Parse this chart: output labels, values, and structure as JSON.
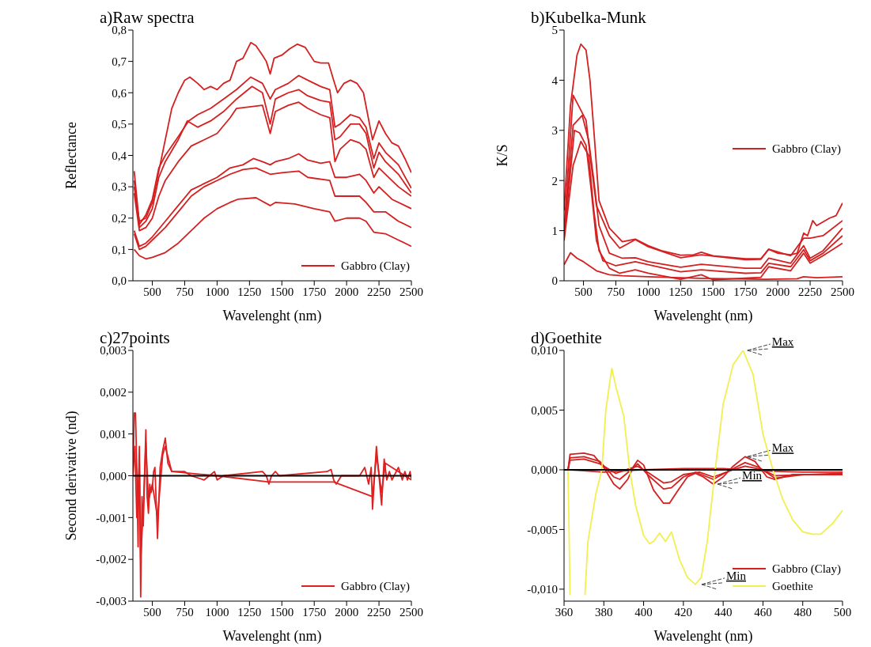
{
  "chart_data": [
    {
      "type": "line",
      "title": "a)Raw spectra",
      "xlabel": "Wavelenght (nm)",
      "ylabel": "Reflectance",
      "xlim": [
        350,
        2500
      ],
      "xticks": [
        500,
        750,
        1000,
        1250,
        1500,
        1750,
        2000,
        2250,
        2500
      ],
      "ylim": [
        0,
        0.8
      ],
      "yticks": [
        {
          "value": 0,
          "label": "0,0"
        },
        {
          "value": 0.1,
          "label": "0,1"
        },
        {
          "value": 0.2,
          "label": "0,2"
        },
        {
          "value": 0.3,
          "label": "0,3"
        },
        {
          "value": 0.4,
          "label": "0,4"
        },
        {
          "value": 0.5,
          "label": "0,5"
        },
        {
          "value": 0.6,
          "label": "0,6"
        },
        {
          "value": 0.7,
          "label": "0,7"
        },
        {
          "value": 0.8,
          "label": "0,8"
        }
      ],
      "legend": "bottom right",
      "grid": false,
      "series": [
        {
          "name": "Gabbro (Clay)",
          "color": "#d42020",
          "x": [
            360,
            400,
            450,
            500,
            550,
            600,
            650,
            700,
            750,
            790,
            850,
            900,
            950,
            1000,
            1050,
            1100,
            1150,
            1200,
            1260,
            1300,
            1350,
            1380,
            1410,
            1440,
            1500,
            1560,
            1620,
            1680,
            1750,
            1800,
            1860,
            1900,
            1930,
            1980,
            2030,
            2080,
            2130,
            2200,
            2250,
            2300,
            2350,
            2400,
            2450,
            2500
          ],
          "values": [
            0.3,
            0.19,
            0.2,
            0.25,
            0.35,
            0.45,
            0.55,
            0.6,
            0.64,
            0.65,
            0.63,
            0.61,
            0.62,
            0.61,
            0.63,
            0.64,
            0.7,
            0.71,
            0.76,
            0.75,
            0.72,
            0.7,
            0.66,
            0.71,
            0.72,
            0.74,
            0.755,
            0.745,
            0.7,
            0.695,
            0.695,
            0.64,
            0.6,
            0.63,
            0.64,
            0.63,
            0.6,
            0.45,
            0.51,
            0.47,
            0.44,
            0.43,
            0.39,
            0.345
          ]
        },
        {
          "color": "#d42020",
          "x": [
            360,
            400,
            450,
            500,
            550,
            600,
            700,
            780,
            850,
            950,
            1050,
            1150,
            1260,
            1350,
            1410,
            1450,
            1550,
            1630,
            1700,
            1800,
            1870,
            1910,
            1950,
            2030,
            2100,
            2150,
            2210,
            2250,
            2300,
            2400,
            2500
          ],
          "values": [
            0.35,
            0.18,
            0.21,
            0.26,
            0.36,
            0.4,
            0.46,
            0.51,
            0.53,
            0.55,
            0.58,
            0.61,
            0.65,
            0.63,
            0.58,
            0.61,
            0.63,
            0.655,
            0.64,
            0.62,
            0.61,
            0.49,
            0.5,
            0.53,
            0.52,
            0.49,
            0.39,
            0.44,
            0.41,
            0.37,
            0.295
          ]
        },
        {
          "color": "#d42020",
          "x": [
            360,
            400,
            450,
            500,
            550,
            600,
            700,
            770,
            850,
            950,
            1050,
            1150,
            1270,
            1350,
            1410,
            1450,
            1550,
            1630,
            1700,
            1800,
            1870,
            1910,
            1950,
            2030,
            2100,
            2150,
            2210,
            2250,
            2300,
            2400,
            2500
          ],
          "values": [
            0.32,
            0.17,
            0.19,
            0.23,
            0.33,
            0.38,
            0.45,
            0.51,
            0.49,
            0.51,
            0.54,
            0.58,
            0.62,
            0.6,
            0.5,
            0.58,
            0.6,
            0.61,
            0.59,
            0.575,
            0.57,
            0.45,
            0.46,
            0.5,
            0.5,
            0.47,
            0.36,
            0.41,
            0.38,
            0.34,
            0.28
          ]
        },
        {
          "color": "#d42020",
          "x": [
            360,
            400,
            450,
            500,
            550,
            600,
            700,
            800,
            900,
            1000,
            1100,
            1150,
            1250,
            1350,
            1410,
            1450,
            1550,
            1630,
            1700,
            1800,
            1870,
            1910,
            1950,
            2030,
            2100,
            2150,
            2210,
            2250,
            2300,
            2400,
            2500
          ],
          "values": [
            0.28,
            0.16,
            0.17,
            0.2,
            0.27,
            0.32,
            0.38,
            0.43,
            0.45,
            0.47,
            0.52,
            0.55,
            0.555,
            0.56,
            0.47,
            0.54,
            0.56,
            0.57,
            0.55,
            0.53,
            0.52,
            0.38,
            0.42,
            0.45,
            0.44,
            0.42,
            0.33,
            0.36,
            0.34,
            0.3,
            0.27
          ]
        },
        {
          "color": "#d42020",
          "x": [
            360,
            400,
            450,
            500,
            600,
            700,
            800,
            900,
            1000,
            1100,
            1200,
            1280,
            1350,
            1410,
            1450,
            1550,
            1630,
            1700,
            1800,
            1870,
            1910,
            2000,
            2100,
            2150,
            2210,
            2250,
            2350,
            2500
          ],
          "values": [
            0.16,
            0.11,
            0.12,
            0.14,
            0.19,
            0.24,
            0.29,
            0.31,
            0.33,
            0.36,
            0.37,
            0.39,
            0.38,
            0.37,
            0.38,
            0.39,
            0.405,
            0.385,
            0.375,
            0.38,
            0.33,
            0.33,
            0.34,
            0.32,
            0.28,
            0.3,
            0.26,
            0.23
          ]
        },
        {
          "color": "#d42020",
          "x": [
            360,
            400,
            450,
            500,
            600,
            700,
            800,
            900,
            1000,
            1100,
            1200,
            1300,
            1410,
            1500,
            1630,
            1700,
            1870,
            1910,
            2000,
            2100,
            2150,
            2210,
            2300,
            2400,
            2500
          ],
          "values": [
            0.15,
            0.1,
            0.11,
            0.13,
            0.17,
            0.22,
            0.27,
            0.3,
            0.32,
            0.34,
            0.355,
            0.36,
            0.34,
            0.345,
            0.35,
            0.33,
            0.32,
            0.27,
            0.27,
            0.27,
            0.25,
            0.22,
            0.22,
            0.19,
            0.17
          ]
        },
        {
          "color": "#d42020",
          "x": [
            360,
            400,
            450,
            500,
            600,
            700,
            800,
            900,
            1000,
            1100,
            1160,
            1300,
            1410,
            1450,
            1600,
            1750,
            1870,
            1910,
            2000,
            2100,
            2150,
            2210,
            2300,
            2400,
            2500
          ],
          "values": [
            0.1,
            0.08,
            0.07,
            0.075,
            0.09,
            0.12,
            0.16,
            0.2,
            0.23,
            0.25,
            0.26,
            0.265,
            0.24,
            0.25,
            0.245,
            0.23,
            0.22,
            0.19,
            0.2,
            0.2,
            0.19,
            0.155,
            0.15,
            0.13,
            0.11
          ]
        }
      ]
    },
    {
      "type": "line",
      "title": "b)Kubelka-Munk",
      "xlabel": "Wavelenght (nm)",
      "ylabel": "K/S",
      "xlim": [
        350,
        2500
      ],
      "xticks": [
        500,
        750,
        1000,
        1250,
        1500,
        1750,
        2000,
        2250,
        2500
      ],
      "ylim": [
        0,
        5
      ],
      "yticks": [
        0,
        1,
        2,
        3,
        4,
        5
      ],
      "legend": "right",
      "grid": false,
      "series": [
        {
          "name": "Gabbro (Clay)",
          "color": "#d42020",
          "x": [
            350,
            400,
            450,
            480,
            520,
            550,
            580,
            620,
            700,
            800,
            900,
            1000,
            1100,
            1250,
            1350,
            1410,
            1500,
            1750,
            1870,
            1930,
            2000,
            2100,
            2150,
            2200,
            2230,
            2270,
            2300,
            2400,
            2450,
            2500
          ],
          "values": [
            1.4,
            3.5,
            4.5,
            4.72,
            4.6,
            4.0,
            3.0,
            1.6,
            1.05,
            0.78,
            0.83,
            0.7,
            0.6,
            0.51,
            0.52,
            0.57,
            0.5,
            0.44,
            0.44,
            0.63,
            0.55,
            0.52,
            0.55,
            0.95,
            0.9,
            1.2,
            1.1,
            1.25,
            1.3,
            1.55
          ]
        },
        {
          "color": "#d42020",
          "x": [
            350,
            420,
            480,
            520,
            560,
            600,
            700,
            780,
            900,
            1000,
            1250,
            1410,
            1750,
            1870,
            1930,
            2100,
            2200,
            2250,
            2350,
            2500
          ],
          "values": [
            1.0,
            3.7,
            3.4,
            3.2,
            2.3,
            1.5,
            0.9,
            0.65,
            0.82,
            0.68,
            0.46,
            0.52,
            0.42,
            0.43,
            0.63,
            0.5,
            0.85,
            0.85,
            0.9,
            1.2
          ]
        },
        {
          "color": "#d42020",
          "x": [
            350,
            420,
            490,
            540,
            580,
            620,
            700,
            800,
            900,
            1000,
            1250,
            1410,
            1750,
            1870,
            1930,
            2100,
            2200,
            2250,
            2350,
            2500
          ],
          "values": [
            0.9,
            3.1,
            3.3,
            2.8,
            2.0,
            1.1,
            0.55,
            0.45,
            0.46,
            0.38,
            0.27,
            0.33,
            0.25,
            0.25,
            0.45,
            0.35,
            0.7,
            0.45,
            0.6,
            1.05
          ]
        },
        {
          "color": "#d42020",
          "x": [
            350,
            430,
            470,
            520,
            560,
            600,
            650,
            750,
            900,
            1000,
            1250,
            1410,
            1750,
            1870,
            1930,
            2100,
            2200,
            2250,
            2350,
            2500
          ],
          "values": [
            0.85,
            3.0,
            2.95,
            2.7,
            1.8,
            0.8,
            0.4,
            0.3,
            0.38,
            0.32,
            0.18,
            0.22,
            0.15,
            0.16,
            0.35,
            0.28,
            0.62,
            0.4,
            0.55,
            0.9
          ]
        },
        {
          "color": "#d42020",
          "x": [
            350,
            420,
            480,
            540,
            580,
            620,
            700,
            780,
            900,
            1000,
            1250,
            1410,
            1500,
            1870,
            1930,
            2100,
            2200,
            2250,
            2350,
            2500
          ],
          "values": [
            0.8,
            2.3,
            2.78,
            2.5,
            1.4,
            0.6,
            0.25,
            0.15,
            0.22,
            0.15,
            0.03,
            0.12,
            0.02,
            0.07,
            0.28,
            0.2,
            0.55,
            0.35,
            0.5,
            0.75
          ]
        },
        {
          "color": "#d42020",
          "x": [
            350,
            400,
            450,
            500,
            600,
            700,
            800,
            1000,
            1400,
            1900,
            2150,
            2200,
            2300,
            2500
          ],
          "values": [
            0.32,
            0.56,
            0.45,
            0.38,
            0.2,
            0.12,
            0.1,
            0.08,
            0.05,
            0.03,
            0.04,
            0.08,
            0.06,
            0.08
          ]
        }
      ]
    },
    {
      "type": "line",
      "title": "c)27points",
      "xlabel": "Wavelenght (nm)",
      "ylabel": "Second derivative (nd)",
      "xlim": [
        350,
        2500
      ],
      "xticks": [
        500,
        750,
        1000,
        1250,
        1500,
        1750,
        2000,
        2250,
        2500
      ],
      "ylim": [
        -0.003,
        0.003
      ],
      "yticks": [
        {
          "value": -0.003,
          "label": "-0,003"
        },
        {
          "value": -0.002,
          "label": "-0,002"
        },
        {
          "value": -0.001,
          "label": "-0,001"
        },
        {
          "value": 0,
          "label": "0,000"
        },
        {
          "value": 0.001,
          "label": "0,001"
        },
        {
          "value": 0.002,
          "label": "0,002"
        },
        {
          "value": 0.003,
          "label": "0,003"
        }
      ],
      "legend": "bottom right",
      "grid": false,
      "ref_lines": [
        {
          "axis": "y",
          "value": 0,
          "color": "#000000"
        }
      ],
      "series": [
        {
          "name": "Gabbro (Clay)",
          "color": "#e02020",
          "x": [
            350,
            360,
            370,
            380,
            390,
            395,
            400,
            410,
            420,
            430,
            440,
            450,
            460,
            470,
            480,
            490,
            500,
            510,
            520,
            540,
            560,
            580,
            600,
            620,
            650,
            700,
            750,
            800,
            900,
            980,
            1000,
            1050,
            1350,
            1380,
            1400,
            1420,
            1450,
            1480,
            1850,
            1880,
            1900,
            1920,
            1960,
            2100,
            2140,
            2170,
            2190,
            2200,
            2230,
            2250,
            2270,
            2290,
            2310,
            2330,
            2350,
            2400,
            2430,
            2450,
            2470,
            2490,
            2500
          ],
          "values": [
            0,
            0.0015,
            0.0015,
            0.0002,
            -0.0017,
            0,
            0.0007,
            -0.0029,
            -0.0005,
            -0.0012,
            0,
            0.0011,
            -0.0005,
            -0.0009,
            -0.0002,
            -0.0004,
            -0.0003,
            0.0001,
            0.0002,
            -0.0015,
            0.0002,
            0.0006,
            0.0009,
            0.0003,
            0.0001,
            0.0001,
            0.0001,
            0,
            -0.0001,
            0.0001,
            -0.0001,
            0,
            0.0001,
            0,
            -0.0002,
            0,
            0.0001,
            0,
            0.0001,
            0.00015,
            -0.0001,
            -0.0002,
            0,
            0,
            0.0002,
            -0.0002,
            0.0002,
            -0.0008,
            0.0007,
            0,
            -0.0007,
            0.0004,
            -0.0001,
            0.0001,
            -0.0001,
            0.0002,
            -0.0001,
            0.0001,
            -0.0001,
            0.0001,
            -0.0001
          ]
        },
        {
          "color": "#e02020",
          "x": [
            350,
            365,
            380,
            400,
            410,
            430,
            450,
            470,
            500,
            540,
            580,
            600,
            650,
            1000,
            1400,
            1900,
            2200,
            2230,
            2270,
            2300,
            2400,
            2500
          ],
          "values": [
            0,
            0.0007,
            -0.001,
            0.0003,
            -0.002,
            -0.0008,
            0.0008,
            -0.0006,
            -0.0002,
            -0.001,
            0.0005,
            0.0007,
            0.0001,
            0,
            -0.00015,
            -0.00015,
            -0.0005,
            0.0005,
            -0.0004,
            0.0003,
            0.0001,
            -0.0001
          ]
        }
      ]
    },
    {
      "type": "line",
      "title": "d)Goethite",
      "xlabel": "Wavelenght (nm)",
      "xlim": [
        360,
        500
      ],
      "xticks": [
        360,
        380,
        400,
        420,
        440,
        460,
        480,
        500
      ],
      "ylim": [
        -0.011,
        0.01
      ],
      "yticks": [
        {
          "value": -0.01,
          "label": "-0,010"
        },
        {
          "value": -0.005,
          "label": "-0,005"
        },
        {
          "value": 0,
          "label": "0,000"
        },
        {
          "value": 0.005,
          "label": "0,005"
        },
        {
          "value": 0.01,
          "label": "0,010"
        }
      ],
      "legend": "bottom right",
      "grid": false,
      "ref_lines": [
        {
          "axis": "y",
          "value": 0,
          "color": "#000000"
        }
      ],
      "annotations": [
        {
          "text": "Max",
          "x": 451,
          "y": 0.01
        },
        {
          "text": "Max",
          "x": 451,
          "y": 0.0011
        },
        {
          "text": "Min",
          "x": 436,
          "y": -0.0012
        },
        {
          "text": "Min",
          "x": 428,
          "y": -0.0096
        }
      ],
      "series": [
        {
          "name": "Gabbro (Clay)",
          "color": "#d42020",
          "x": [
            362,
            363,
            370,
            375,
            380,
            385,
            388,
            392,
            395,
            397,
            400,
            405,
            410,
            413,
            417,
            422,
            426,
            430,
            435,
            440,
            445,
            451,
            456,
            462,
            466,
            475,
            490,
            500
          ],
          "values": [
            0,
            0.0013,
            0.0014,
            0.0012,
            0.0002,
            -0.0012,
            -0.0016,
            -0.0008,
            0.0003,
            0.0008,
            0.0004,
            -0.0017,
            -0.0028,
            -0.0028,
            -0.0018,
            -0.0006,
            -0.0003,
            -0.0006,
            -0.0012,
            -0.0006,
            0.0003,
            0.0011,
            0.0007,
            -0.0006,
            -0.0008,
            -0.0004,
            -0.0004,
            -0.0004
          ]
        },
        {
          "color": "#d42020",
          "x": [
            362,
            363,
            370,
            378,
            385,
            388,
            393,
            397,
            402,
            410,
            414,
            420,
            426,
            435,
            445,
            451,
            458,
            466,
            480,
            500
          ],
          "values": [
            0,
            0.001,
            0.0011,
            0.0007,
            -0.0006,
            -0.0008,
            -0.0001,
            0.0005,
            -0.0004,
            -0.0016,
            -0.0015,
            -0.0006,
            -0.0002,
            -0.0008,
            0.0001,
            0.0006,
            0.0002,
            -0.0007,
            -0.0004,
            -0.0004
          ]
        },
        {
          "color": "#d42020",
          "x": [
            362,
            363,
            370,
            378,
            386,
            393,
            397,
            402,
            410,
            414,
            420,
            428,
            435,
            445,
            451,
            460,
            466,
            500
          ],
          "values": [
            0,
            0.0008,
            0.0009,
            0.0005,
            -0.0003,
            0.0001,
            0.0003,
            -0.0002,
            -0.0011,
            -0.001,
            -0.0004,
            -0.0002,
            -0.0006,
            0,
            0.0003,
            0,
            -0.0005,
            -0.0003
          ]
        },
        {
          "color": "#d42020",
          "x": [
            362,
            380,
            400,
            420,
            440,
            460,
            480,
            500
          ],
          "values": [
            0,
            -0.0002,
            0,
            0.0001,
            0.0001,
            -0.0001,
            -0.0002,
            -0.0002
          ]
        },
        {
          "name": "Goethite",
          "color": "#f2ef50",
          "x": [
            362,
            362.5,
            363,
            366,
            370.5,
            372,
            376,
            379,
            381,
            384,
            386,
            390,
            393,
            396,
            400,
            403,
            405,
            408,
            411,
            414,
            418,
            422,
            426,
            429,
            432,
            436,
            440,
            445,
            450,
            455,
            460,
            465,
            470,
            475,
            480,
            485,
            489,
            495,
            500
          ],
          "values": [
            0,
            -0.005,
            -0.0105,
            null,
            -0.0105,
            -0.006,
            -0.002,
            0,
            0.005,
            0.0085,
            0.007,
            0.0045,
            0,
            -0.003,
            -0.0055,
            -0.0062,
            -0.006,
            -0.0053,
            -0.006,
            -0.0052,
            -0.0075,
            -0.009,
            -0.0096,
            -0.009,
            -0.006,
            0,
            0.0055,
            0.0088,
            0.01,
            0.008,
            0.003,
            0,
            -0.0025,
            -0.0042,
            -0.0052,
            -0.0054,
            -0.0054,
            -0.0045,
            -0.0034
          ]
        }
      ]
    }
  ]
}
